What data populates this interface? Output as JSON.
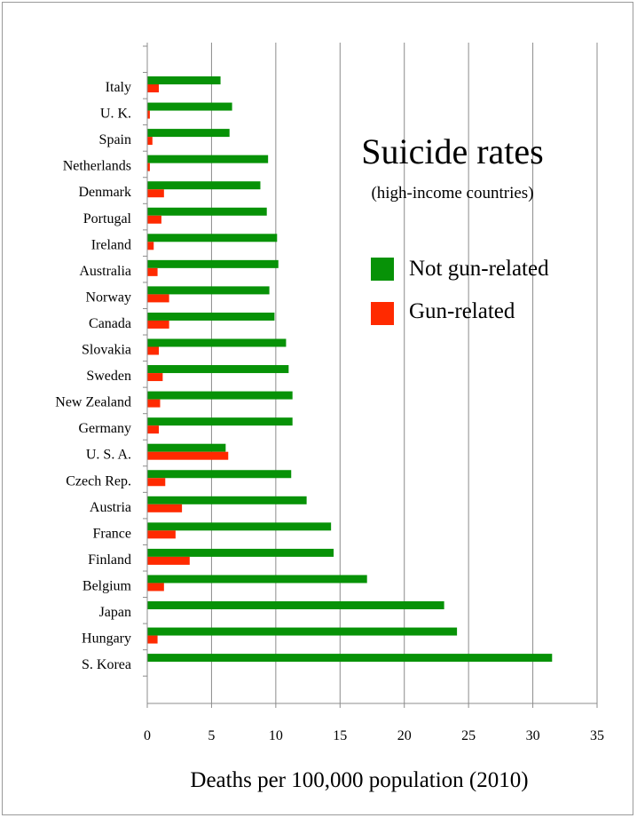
{
  "chart_data": {
    "type": "bar",
    "orientation": "horizontal",
    "title": "Suicide rates",
    "subtitle": "(high-income countries)",
    "xlabel": "Deaths per 100,000 population (2010)",
    "ylabel": "",
    "xlim": [
      0,
      35
    ],
    "xticks": [
      0,
      5,
      10,
      15,
      20,
      25,
      30,
      35
    ],
    "grid": "vertical",
    "legend_position": "right",
    "categories": [
      "Italy",
      "U. K.",
      "Spain",
      "Netherlands",
      "Denmark",
      "Portugal",
      "Ireland",
      "Australia",
      "Norway",
      "Canada",
      "Slovakia",
      "Sweden",
      "New Zealand",
      "Germany",
      "U. S. A.",
      "Czech Rep.",
      "Austria",
      "France",
      "Finland",
      "Belgium",
      "Japan",
      "Hungary",
      "S. Korea"
    ],
    "series": [
      {
        "name": "Not gun-related",
        "color": "#079207",
        "values": [
          5.7,
          6.6,
          6.4,
          9.4,
          8.8,
          9.3,
          10.1,
          10.2,
          9.5,
          9.9,
          10.8,
          11.0,
          11.3,
          11.3,
          6.1,
          11.2,
          12.4,
          14.3,
          14.5,
          17.1,
          23.1,
          24.1,
          31.5
        ]
      },
      {
        "name": "Gun-related",
        "color": "#ff2a00",
        "values": [
          0.9,
          0.2,
          0.4,
          0.2,
          1.3,
          1.1,
          0.5,
          0.8,
          1.7,
          1.7,
          0.9,
          1.2,
          1.0,
          0.9,
          6.3,
          1.4,
          2.7,
          2.2,
          3.3,
          1.3,
          0.0,
          0.8,
          0.0
        ]
      }
    ]
  }
}
